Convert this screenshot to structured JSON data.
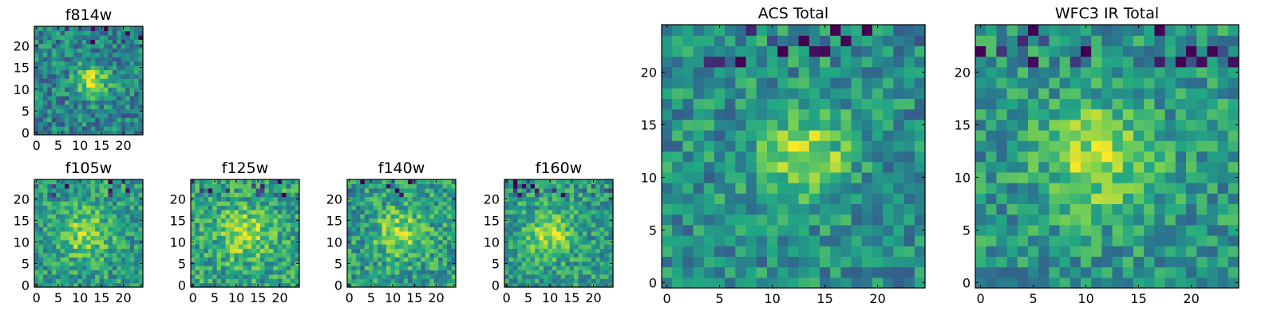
{
  "colormap": [
    "#440154",
    "#414487",
    "#2a788e",
    "#22a884",
    "#7ad151",
    "#fde725"
  ],
  "chart_data": [
    {
      "type": "heatmap",
      "title": "f814w",
      "grid_size": 25,
      "blob": {
        "x": 13,
        "y": 12,
        "amplitude": 0.45,
        "sigma": 2.6
      },
      "noise": 0.22,
      "base": 0.45,
      "seed": 11,
      "x_ticks": [
        0,
        5,
        10,
        15,
        20
      ],
      "y_ticks": [
        0,
        5,
        10,
        15,
        20
      ],
      "xlim": [
        -0.5,
        24.5
      ],
      "ylim": [
        -0.5,
        24.5
      ]
    },
    {
      "type": "heatmap",
      "title": "f105w",
      "grid_size": 25,
      "blob": {
        "x": 11,
        "y": 12,
        "amplitude": 0.3,
        "sigma": 4.0
      },
      "noise": 0.2,
      "base": 0.55,
      "seed": 23,
      "x_ticks": [
        0,
        5,
        10,
        15,
        20
      ],
      "y_ticks": [
        0,
        5,
        10,
        15,
        20
      ],
      "xlim": [
        -0.5,
        24.5
      ],
      "ylim": [
        -0.5,
        24.5
      ]
    },
    {
      "type": "heatmap",
      "title": "f125w",
      "grid_size": 25,
      "blob": {
        "x": 12,
        "y": 12,
        "amplitude": 0.3,
        "sigma": 4.0
      },
      "noise": 0.22,
      "base": 0.58,
      "seed": 37,
      "x_ticks": [
        0,
        5,
        10,
        15,
        20
      ],
      "y_ticks": [
        0,
        5,
        10,
        15,
        20
      ],
      "xlim": [
        -0.5,
        24.5
      ],
      "ylim": [
        -0.5,
        24.5
      ]
    },
    {
      "type": "heatmap",
      "title": "f140w",
      "grid_size": 25,
      "blob": {
        "x": 12,
        "y": 12,
        "amplitude": 0.32,
        "sigma": 3.8
      },
      "noise": 0.22,
      "base": 0.55,
      "seed": 51,
      "x_ticks": [
        0,
        5,
        10,
        15,
        20
      ],
      "y_ticks": [
        0,
        5,
        10,
        15,
        20
      ],
      "xlim": [
        -0.5,
        24.5
      ],
      "ylim": [
        -0.5,
        24.5
      ]
    },
    {
      "type": "heatmap",
      "title": "f160w",
      "grid_size": 25,
      "blob": {
        "x": 10,
        "y": 12,
        "amplitude": 0.35,
        "sigma": 3.5
      },
      "noise": 0.2,
      "base": 0.55,
      "seed": 67,
      "x_ticks": [
        0,
        5,
        10,
        15,
        20
      ],
      "y_ticks": [
        0,
        5,
        10,
        15,
        20
      ],
      "xlim": [
        -0.5,
        24.5
      ],
      "ylim": [
        -0.5,
        24.5
      ]
    },
    {
      "type": "heatmap",
      "title": "ACS Total",
      "grid_size": 25,
      "blob": {
        "x": 13,
        "y": 12,
        "amplitude": 0.42,
        "sigma": 2.8
      },
      "noise": 0.2,
      "base": 0.5,
      "seed": 83,
      "x_ticks": [
        0,
        5,
        10,
        15,
        20
      ],
      "y_ticks": [
        0,
        5,
        10,
        15,
        20
      ],
      "xlim": [
        -0.5,
        24.5
      ],
      "ylim": [
        -0.5,
        24.5
      ]
    },
    {
      "type": "heatmap",
      "title": "WFC3 IR Total",
      "grid_size": 25,
      "blob": {
        "x": 11,
        "y": 12,
        "amplitude": 0.35,
        "sigma": 3.6
      },
      "noise": 0.2,
      "base": 0.52,
      "seed": 97,
      "x_ticks": [
        0,
        5,
        10,
        15,
        20
      ],
      "y_ticks": [
        0,
        5,
        10,
        15,
        20
      ],
      "xlim": [
        -0.5,
        24.5
      ],
      "ylim": [
        -0.5,
        24.5
      ]
    }
  ]
}
